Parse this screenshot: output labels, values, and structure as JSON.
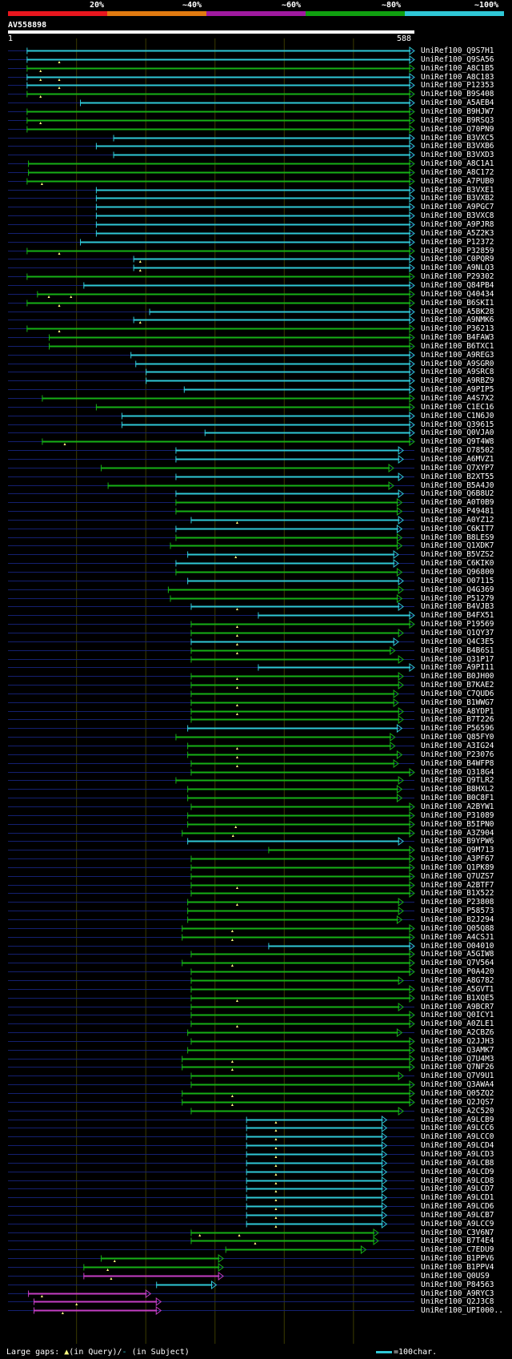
{
  "header": {
    "pct_labels": [
      "20%",
      "~40%",
      "~60%",
      "~80%",
      "~100%"
    ],
    "legend_colors": [
      "#e8161e",
      "#e07a10",
      "#a01aa0",
      "#10a010",
      "#2fc7d6"
    ]
  },
  "query": {
    "id": "AV558898",
    "start": "1",
    "end": "588",
    "length": 588
  },
  "colors": {
    "cyan": "#2fc7d6",
    "green": "#16b016",
    "magenta": "#c43ec4",
    "dark": "#142070",
    "gap": "#ffff80"
  },
  "hits": [
    {
      "label": "UniRef100_Q9S7H1",
      "s": 28,
      "e": 588,
      "c": "cyan",
      "g": []
    },
    {
      "label": "UniRef100_Q9SA56",
      "s": 28,
      "e": 588,
      "c": "cyan",
      "g": [
        75
      ]
    },
    {
      "label": "UniRef100_A8C1B5",
      "s": 28,
      "e": 588,
      "c": "green",
      "g": [
        48
      ]
    },
    {
      "label": "UniRef100_A8C183",
      "s": 28,
      "e": 588,
      "c": "cyan",
      "g": [
        48,
        75
      ]
    },
    {
      "label": "UniRef100_P12353",
      "s": 28,
      "e": 588,
      "c": "cyan",
      "g": [
        75
      ]
    },
    {
      "label": "UniRef100_B9S408",
      "s": 28,
      "e": 588,
      "c": "green",
      "g": [
        48
      ]
    },
    {
      "label": "UniRef100_A5AEB4",
      "s": 105,
      "e": 588,
      "c": "cyan",
      "g": []
    },
    {
      "label": "UniRef100_B9HJW7",
      "s": 28,
      "e": 588,
      "c": "green",
      "g": []
    },
    {
      "label": "UniRef100_B9RSQ3",
      "s": 28,
      "e": 588,
      "c": "green",
      "g": [
        48
      ]
    },
    {
      "label": "UniRef100_Q70PN9",
      "s": 28,
      "e": 588,
      "c": "green",
      "g": []
    },
    {
      "label": "UniRef100_B3VXC5",
      "s": 153,
      "e": 588,
      "c": "cyan",
      "g": []
    },
    {
      "label": "UniRef100_B3VXB6",
      "s": 128,
      "e": 588,
      "c": "cyan",
      "g": []
    },
    {
      "label": "UniRef100_B3VXD3",
      "s": 153,
      "e": 588,
      "c": "cyan",
      "g": []
    },
    {
      "label": "UniRef100_A8C1A1",
      "s": 30,
      "e": 588,
      "c": "green",
      "g": []
    },
    {
      "label": "UniRef100_A8C172",
      "s": 30,
      "e": 588,
      "c": "green",
      "g": []
    },
    {
      "label": "UniRef100_A7PUB0",
      "s": 28,
      "e": 588,
      "c": "green",
      "g": [
        50
      ]
    },
    {
      "label": "UniRef100_B3VXE1",
      "s": 128,
      "e": 588,
      "c": "cyan",
      "g": []
    },
    {
      "label": "UniRef100_B3VXB2",
      "s": 128,
      "e": 588,
      "c": "cyan",
      "g": []
    },
    {
      "label": "UniRef100_A9PGC7",
      "s": 128,
      "e": 588,
      "c": "cyan",
      "g": []
    },
    {
      "label": "UniRef100_B3VXC8",
      "s": 128,
      "e": 588,
      "c": "cyan",
      "g": []
    },
    {
      "label": "UniRef100_A9PJR8",
      "s": 128,
      "e": 588,
      "c": "cyan",
      "g": []
    },
    {
      "label": "UniRef100_A5Z2K3",
      "s": 128,
      "e": 588,
      "c": "cyan",
      "g": []
    },
    {
      "label": "UniRef100_P12372",
      "s": 105,
      "e": 588,
      "c": "cyan",
      "g": []
    },
    {
      "label": "UniRef100_P32859",
      "s": 28,
      "e": 588,
      "c": "green",
      "g": [
        75
      ]
    },
    {
      "label": "UniRef100_C0PQR9",
      "s": 182,
      "e": 588,
      "c": "cyan",
      "g": [
        192
      ]
    },
    {
      "label": "UniRef100_A9NLQ3",
      "s": 182,
      "e": 588,
      "c": "cyan",
      "g": [
        192
      ]
    },
    {
      "label": "UniRef100_P29302",
      "s": 28,
      "e": 588,
      "c": "green",
      "g": []
    },
    {
      "label": "UniRef100_Q84PB4",
      "s": 110,
      "e": 588,
      "c": "cyan",
      "g": []
    },
    {
      "label": "UniRef100_Q40434",
      "s": 43,
      "e": 588,
      "c": "green",
      "g": [
        60,
        92
      ]
    },
    {
      "label": "UniRef100_B6SKI1",
      "s": 28,
      "e": 588,
      "c": "green",
      "g": [
        75
      ]
    },
    {
      "label": "UniRef100_A5BK28",
      "s": 205,
      "e": 588,
      "c": "cyan",
      "g": []
    },
    {
      "label": "UniRef100_A9NMK6",
      "s": 182,
      "e": 588,
      "c": "cyan",
      "g": [
        192
      ]
    },
    {
      "label": "UniRef100_P36213",
      "s": 28,
      "e": 588,
      "c": "green",
      "g": [
        75
      ]
    },
    {
      "label": "UniRef100_B4FAW3",
      "s": 60,
      "e": 588,
      "c": "green",
      "g": []
    },
    {
      "label": "UniRef100_B6TXC1",
      "s": 60,
      "e": 588,
      "c": "green",
      "g": []
    },
    {
      "label": "UniRef100_A9REG3",
      "s": 178,
      "e": 588,
      "c": "cyan",
      "g": []
    },
    {
      "label": "UniRef100_A9SGR0",
      "s": 185,
      "e": 588,
      "c": "cyan",
      "g": []
    },
    {
      "label": "UniRef100_A9SRC8",
      "s": 200,
      "e": 588,
      "c": "cyan",
      "g": []
    },
    {
      "label": "UniRef100_A9RBZ9",
      "s": 200,
      "e": 588,
      "c": "cyan",
      "g": []
    },
    {
      "label": "UniRef100_A9PIP5",
      "s": 255,
      "e": 588,
      "c": "cyan",
      "g": []
    },
    {
      "label": "UniRef100_A4S7X2",
      "s": 50,
      "e": 588,
      "c": "green",
      "g": []
    },
    {
      "label": "UniRef100_C1EC16",
      "s": 128,
      "e": 588,
      "c": "green",
      "g": []
    },
    {
      "label": "UniRef100_C1N6J0",
      "s": 165,
      "e": 588,
      "c": "cyan",
      "g": []
    },
    {
      "label": "UniRef100_Q39615",
      "s": 165,
      "e": 588,
      "c": "cyan",
      "g": []
    },
    {
      "label": "UniRef100_Q0VJA0",
      "s": 285,
      "e": 588,
      "c": "cyan",
      "g": []
    },
    {
      "label": "UniRef100_Q9T4W8",
      "s": 50,
      "e": 588,
      "c": "green",
      "g": [
        83
      ]
    },
    {
      "label": "UniRef100_O78502",
      "s": 243,
      "e": 572,
      "c": "cyan",
      "g": []
    },
    {
      "label": "UniRef100_A6MVZ1",
      "s": 243,
      "e": 572,
      "c": "cyan",
      "g": []
    },
    {
      "label": "UniRef100_Q7XYP7",
      "s": 135,
      "e": 558,
      "c": "green",
      "g": []
    },
    {
      "label": "UniRef100_B2XT55",
      "s": 243,
      "e": 572,
      "c": "cyan",
      "g": []
    },
    {
      "label": "UniRef100_B5A4J0",
      "s": 145,
      "e": 558,
      "c": "green",
      "g": []
    },
    {
      "label": "UniRef100_Q6B8U2",
      "s": 243,
      "e": 572,
      "c": "cyan",
      "g": []
    },
    {
      "label": "UniRef100_A0T0B9",
      "s": 243,
      "e": 570,
      "c": "green",
      "g": []
    },
    {
      "label": "UniRef100_P49481",
      "s": 243,
      "e": 570,
      "c": "green",
      "g": []
    },
    {
      "label": "UniRef100_A0YZ12",
      "s": 265,
      "e": 572,
      "c": "cyan",
      "g": [
        332
      ]
    },
    {
      "label": "UniRef100_C6KIT7",
      "s": 243,
      "e": 570,
      "c": "cyan",
      "g": []
    },
    {
      "label": "UniRef100_B8LES9",
      "s": 243,
      "e": 570,
      "c": "green",
      "g": []
    },
    {
      "label": "UniRef100_Q1XDK7",
      "s": 235,
      "e": 570,
      "c": "green",
      "g": []
    },
    {
      "label": "UniRef100_B5VZS2",
      "s": 260,
      "e": 565,
      "c": "cyan",
      "g": [
        330
      ]
    },
    {
      "label": "UniRef100_C6KIK0",
      "s": 243,
      "e": 565,
      "c": "cyan",
      "g": []
    },
    {
      "label": "UniRef100_Q96800",
      "s": 243,
      "e": 570,
      "c": "green",
      "g": []
    },
    {
      "label": "UniRef100_O07115",
      "s": 260,
      "e": 572,
      "c": "cyan",
      "g": []
    },
    {
      "label": "UniRef100_Q4G369",
      "s": 232,
      "e": 572,
      "c": "green",
      "g": []
    },
    {
      "label": "UniRef100_P51279",
      "s": 235,
      "e": 570,
      "c": "green",
      "g": []
    },
    {
      "label": "UniRef100_B4VJB3",
      "s": 265,
      "e": 572,
      "c": "cyan",
      "g": [
        332
      ]
    },
    {
      "label": "UniRef100_B4FX51",
      "s": 362,
      "e": 588,
      "c": "cyan",
      "g": []
    },
    {
      "label": "UniRef100_P19569",
      "s": 265,
      "e": 588,
      "c": "green",
      "g": [
        332
      ]
    },
    {
      "label": "UniRef100_Q1QY37",
      "s": 265,
      "e": 572,
      "c": "green",
      "g": [
        332
      ]
    },
    {
      "label": "UniRef100_Q4C3E5",
      "s": 265,
      "e": 565,
      "c": "cyan",
      "g": [
        332
      ]
    },
    {
      "label": "UniRef100_B4B6S1",
      "s": 265,
      "e": 560,
      "c": "green",
      "g": [
        332
      ]
    },
    {
      "label": "UniRef100_Q31P17",
      "s": 265,
      "e": 572,
      "c": "green",
      "g": []
    },
    {
      "label": "UniRef100_A9PI11",
      "s": 362,
      "e": 588,
      "c": "cyan",
      "g": []
    },
    {
      "label": "UniRef100_B0JH00",
      "s": 265,
      "e": 572,
      "c": "green",
      "g": [
        332
      ]
    },
    {
      "label": "UniRef100_B7KAE2",
      "s": 265,
      "e": 572,
      "c": "green",
      "g": [
        332
      ]
    },
    {
      "label": "UniRef100_C7QUD6",
      "s": 265,
      "e": 565,
      "c": "green",
      "g": []
    },
    {
      "label": "UniRef100_B1WWG7",
      "s": 265,
      "e": 565,
      "c": "green",
      "g": [
        332
      ]
    },
    {
      "label": "UniRef100_A8YDP1",
      "s": 265,
      "e": 572,
      "c": "green",
      "g": [
        332
      ]
    },
    {
      "label": "UniRef100_B7T226",
      "s": 265,
      "e": 572,
      "c": "green",
      "g": []
    },
    {
      "label": "UniRef100_P56596",
      "s": 260,
      "e": 570,
      "c": "cyan",
      "g": []
    },
    {
      "label": "UniRef100_Q85FY0",
      "s": 243,
      "e": 560,
      "c": "green",
      "g": []
    },
    {
      "label": "UniRef100_A3IG24",
      "s": 260,
      "e": 560,
      "c": "green",
      "g": [
        332
      ]
    },
    {
      "label": "UniRef100_P23076",
      "s": 260,
      "e": 570,
      "c": "green",
      "g": [
        332
      ]
    },
    {
      "label": "UniRef100_B4WFP8",
      "s": 265,
      "e": 565,
      "c": "green",
      "g": [
        332
      ]
    },
    {
      "label": "UniRef100_Q318G4",
      "s": 265,
      "e": 588,
      "c": "green",
      "g": []
    },
    {
      "label": "UniRef100_Q9TLR2",
      "s": 243,
      "e": 572,
      "c": "green",
      "g": []
    },
    {
      "label": "UniRef100_B8HXL2",
      "s": 260,
      "e": 570,
      "c": "green",
      "g": []
    },
    {
      "label": "UniRef100_B0C8F1",
      "s": 260,
      "e": 570,
      "c": "green",
      "g": []
    },
    {
      "label": "UniRef100_A2BYW1",
      "s": 265,
      "e": 588,
      "c": "green",
      "g": []
    },
    {
      "label": "UniRef100_P31089",
      "s": 260,
      "e": 588,
      "c": "green",
      "g": []
    },
    {
      "label": "UniRef100_B5IPN0",
      "s": 260,
      "e": 588,
      "c": "green",
      "g": [
        330
      ]
    },
    {
      "label": "UniRef100_A3Z904",
      "s": 252,
      "e": 588,
      "c": "green",
      "g": [
        326
      ]
    },
    {
      "label": "UniRef100_B9YPW6",
      "s": 260,
      "e": 572,
      "c": "cyan",
      "g": []
    },
    {
      "label": "UniRef100_Q9M713",
      "s": 377,
      "e": 588,
      "c": "green",
      "g": []
    },
    {
      "label": "UniRef100_A3PF67",
      "s": 265,
      "e": 588,
      "c": "green",
      "g": []
    },
    {
      "label": "UniRef100_Q1PK89",
      "s": 265,
      "e": 588,
      "c": "green",
      "g": []
    },
    {
      "label": "UniRef100_Q7UZS7",
      "s": 265,
      "e": 588,
      "c": "green",
      "g": []
    },
    {
      "label": "UniRef100_A2BTF7",
      "s": 265,
      "e": 588,
      "c": "green",
      "g": [
        332
      ]
    },
    {
      "label": "UniRef100_B1X522",
      "s": 265,
      "e": 588,
      "c": "green",
      "g": []
    },
    {
      "label": "UniRef100_P23808",
      "s": 260,
      "e": 572,
      "c": "green",
      "g": [
        332
      ]
    },
    {
      "label": "UniRef100_P58573",
      "s": 260,
      "e": 572,
      "c": "green",
      "g": []
    },
    {
      "label": "UniRef100_B2J294",
      "s": 260,
      "e": 570,
      "c": "green",
      "g": []
    },
    {
      "label": "UniRef100_Q05Q88",
      "s": 252,
      "e": 588,
      "c": "green",
      "g": [
        325
      ]
    },
    {
      "label": "UniRef100_A4CSJ1",
      "s": 252,
      "e": 588,
      "c": "green",
      "g": [
        325
      ]
    },
    {
      "label": "UniRef100_O04010",
      "s": 377,
      "e": 588,
      "c": "cyan",
      "g": []
    },
    {
      "label": "UniRef100_A5GIW8",
      "s": 265,
      "e": 588,
      "c": "green",
      "g": []
    },
    {
      "label": "UniRef100_Q7V564",
      "s": 252,
      "e": 588,
      "c": "green",
      "g": [
        325
      ]
    },
    {
      "label": "UniRef100_P0A420",
      "s": 265,
      "e": 588,
      "c": "green",
      "g": []
    },
    {
      "label": "UniRef100_A8G782",
      "s": 265,
      "e": 572,
      "c": "green",
      "g": []
    },
    {
      "label": "UniRef100_A5GVT1",
      "s": 265,
      "e": 588,
      "c": "green",
      "g": []
    },
    {
      "label": "UniRef100_B1XQE5",
      "s": 265,
      "e": 588,
      "c": "green",
      "g": [
        332
      ]
    },
    {
      "label": "UniRef100_A9BCR7",
      "s": 265,
      "e": 572,
      "c": "green",
      "g": []
    },
    {
      "label": "UniRef100_Q0ICY1",
      "s": 265,
      "e": 588,
      "c": "green",
      "g": []
    },
    {
      "label": "UniRef100_A0ZLE1",
      "s": 265,
      "e": 588,
      "c": "green",
      "g": [
        332
      ]
    },
    {
      "label": "UniRef100_A2CBZ6",
      "s": 260,
      "e": 570,
      "c": "green",
      "g": []
    },
    {
      "label": "UniRef100_Q2JJH3",
      "s": 265,
      "e": 588,
      "c": "green",
      "g": []
    },
    {
      "label": "UniRef100_Q3AMK7",
      "s": 260,
      "e": 588,
      "c": "green",
      "g": []
    },
    {
      "label": "UniRef100_Q7U4M3",
      "s": 252,
      "e": 588,
      "c": "green",
      "g": [
        325
      ]
    },
    {
      "label": "UniRef100_Q7NF26",
      "s": 252,
      "e": 588,
      "c": "green",
      "g": [
        325
      ]
    },
    {
      "label": "UniRef100_Q7V9U1",
      "s": 265,
      "e": 572,
      "c": "green",
      "g": []
    },
    {
      "label": "UniRef100_Q3AWA4",
      "s": 265,
      "e": 588,
      "c": "green",
      "g": []
    },
    {
      "label": "UniRef100_Q05ZQ2",
      "s": 252,
      "e": 588,
      "c": "green",
      "g": [
        325
      ]
    },
    {
      "label": "UniRef100_Q2JQS7",
      "s": 252,
      "e": 588,
      "c": "green",
      "g": [
        325
      ]
    },
    {
      "label": "UniRef100_A2C520",
      "s": 265,
      "e": 572,
      "c": "green",
      "g": []
    },
    {
      "label": "UniRef100_A9LCB9",
      "s": 345,
      "e": 548,
      "c": "cyan",
      "g": [
        388
      ]
    },
    {
      "label": "UniRef100_A9LCC6",
      "s": 345,
      "e": 548,
      "c": "cyan",
      "g": [
        388
      ]
    },
    {
      "label": "UniRef100_A9LCC0",
      "s": 345,
      "e": 548,
      "c": "cyan",
      "g": [
        388
      ]
    },
    {
      "label": "UniRef100_A9LCD4",
      "s": 345,
      "e": 548,
      "c": "cyan",
      "g": [
        388
      ]
    },
    {
      "label": "UniRef100_A9LCD3",
      "s": 345,
      "e": 548,
      "c": "cyan",
      "g": [
        388
      ]
    },
    {
      "label": "UniRef100_A9LCB8",
      "s": 345,
      "e": 548,
      "c": "cyan",
      "g": [
        388
      ]
    },
    {
      "label": "UniRef100_A9LCD9",
      "s": 345,
      "e": 548,
      "c": "cyan",
      "g": [
        388
      ]
    },
    {
      "label": "UniRef100_A9LCD8",
      "s": 345,
      "e": 548,
      "c": "cyan",
      "g": [
        388
      ]
    },
    {
      "label": "UniRef100_A9LCD7",
      "s": 345,
      "e": 548,
      "c": "cyan",
      "g": [
        388
      ]
    },
    {
      "label": "UniRef100_A9LCD1",
      "s": 345,
      "e": 548,
      "c": "cyan",
      "g": [
        388
      ]
    },
    {
      "label": "UniRef100_A9LCD6",
      "s": 345,
      "e": 548,
      "c": "cyan",
      "g": [
        388
      ]
    },
    {
      "label": "UniRef100_A9LCB7",
      "s": 345,
      "e": 548,
      "c": "cyan",
      "g": [
        388
      ]
    },
    {
      "label": "UniRef100_A9LCC9",
      "s": 345,
      "e": 548,
      "c": "cyan",
      "g": [
        388
      ]
    },
    {
      "label": "UniRef100_C3V6N7",
      "s": 265,
      "e": 536,
      "c": "green",
      "g": [
        278,
        335
      ]
    },
    {
      "label": "UniRef100_B7T4E4",
      "s": 265,
      "e": 536,
      "c": "green",
      "g": [
        358
      ]
    },
    {
      "label": "UniRef100_C7EDU9",
      "s": 315,
      "e": 518,
      "c": "green",
      "g": []
    },
    {
      "label": "UniRef100_B1PPV6",
      "s": 135,
      "e": 312,
      "c": "green",
      "g": [
        155
      ]
    },
    {
      "label": "UniRef100_B1PPV4",
      "s": 110,
      "e": 312,
      "c": "green",
      "g": [
        145
      ]
    },
    {
      "label": "UniRef100_Q0US9",
      "s": 110,
      "e": 312,
      "c": "magenta",
      "g": [
        150
      ]
    },
    {
      "label": "UniRef100_P84563",
      "s": 215,
      "e": 302,
      "c": "cyan",
      "g": []
    },
    {
      "label": "UniRef100_A9RYC3",
      "s": 30,
      "e": 207,
      "c": "magenta",
      "g": [
        50
      ]
    },
    {
      "label": "UniRef100_Q2J3C8",
      "s": 38,
      "e": 222,
      "c": "magenta",
      "g": [
        100
      ]
    },
    {
      "label": "UniRef100_UPI000..",
      "s": 38,
      "e": 222,
      "c": "magenta",
      "g": [
        80
      ]
    }
  ],
  "footer": {
    "prefix": "Large gaps: ",
    "tri": "▲",
    "q_text": "(in Query)/",
    "s_mark": "-",
    "s_text": " (in Subject)",
    "scale_text": "=100char."
  }
}
